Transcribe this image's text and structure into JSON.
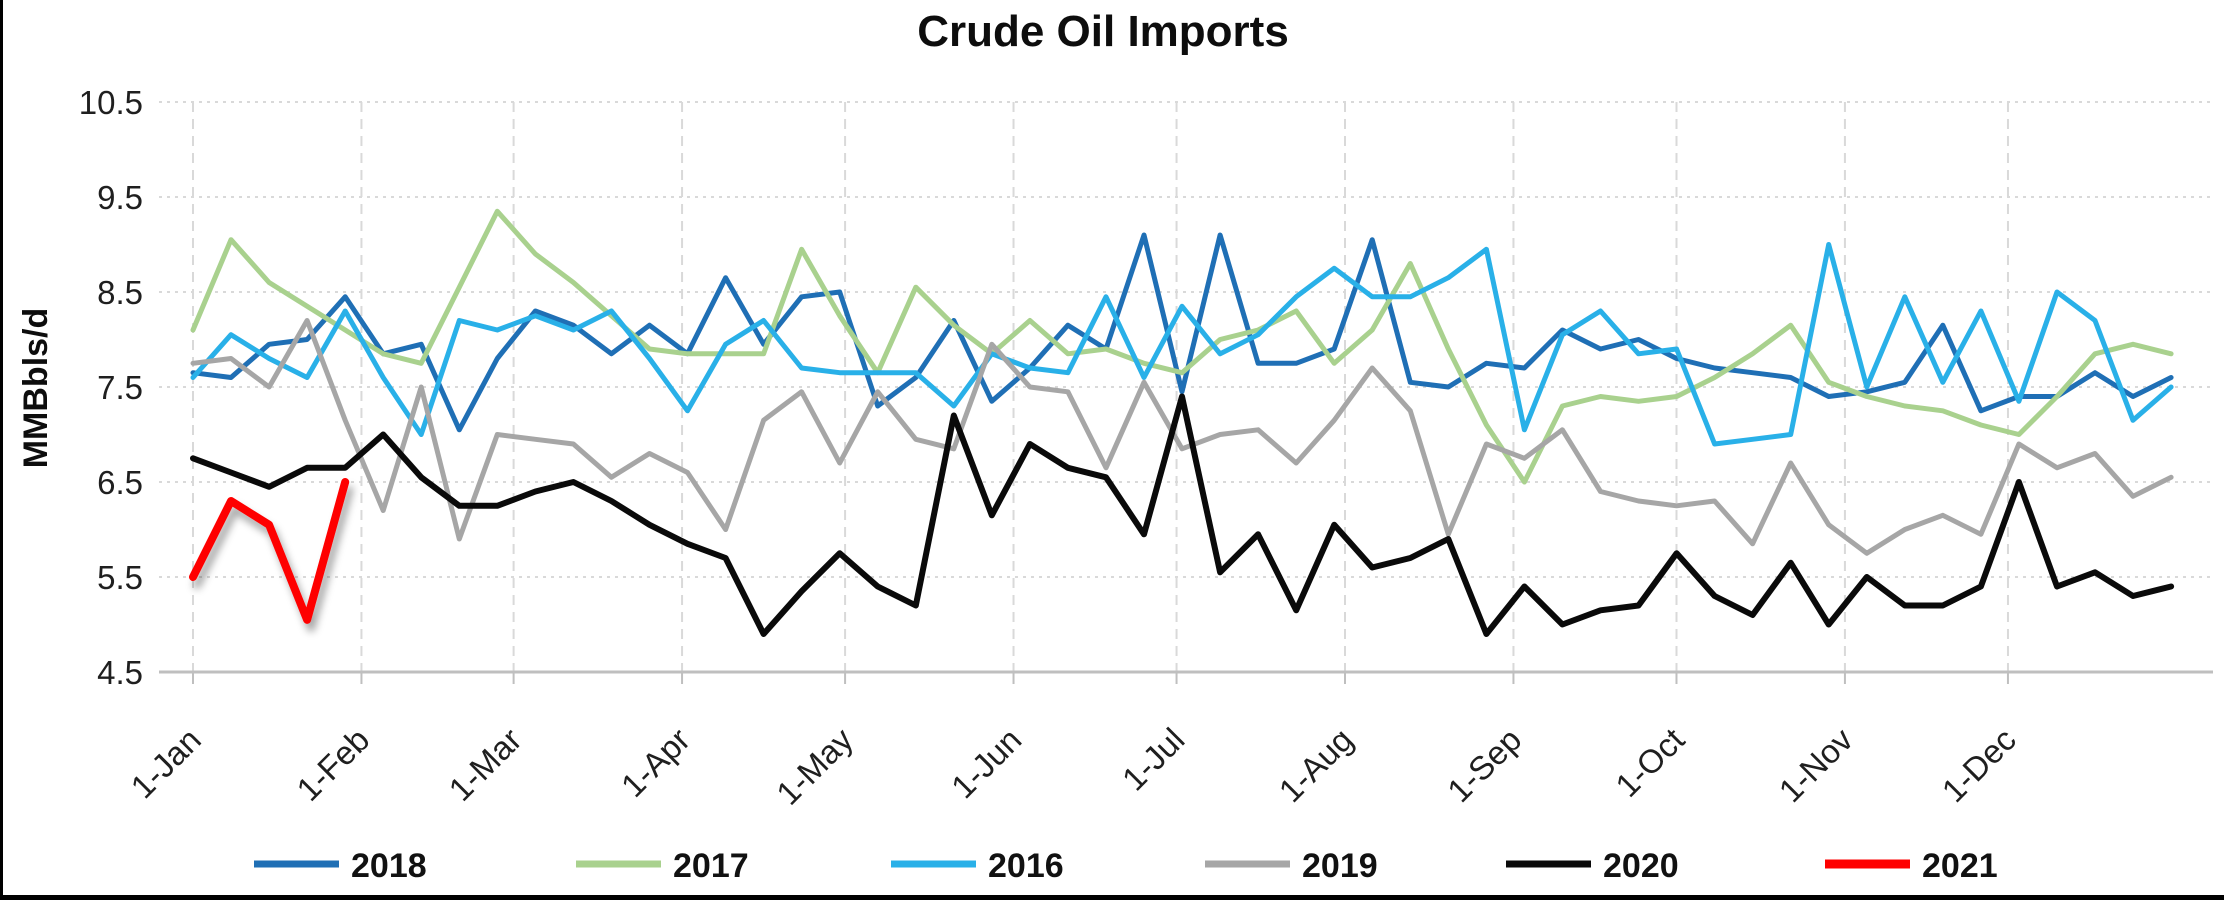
{
  "title": "Crude Oil Imports",
  "y_axis": {
    "label": "MMBbls/d",
    "ticks": [
      10.5,
      9.5,
      8.5,
      7.5,
      6.5,
      5.5,
      4.5
    ],
    "min": 4.5,
    "max": 10.5
  },
  "x_axis": {
    "tick_labels": [
      "1-Jan",
      "1-Feb",
      "1-Mar",
      "1-Apr",
      "1-May",
      "1-Jun",
      "1-Jul",
      "1-Aug",
      "1-Sep",
      "1-Oct",
      "1-Nov",
      "1-Dec"
    ],
    "tick_day_of_year": [
      0,
      31,
      59,
      90,
      120,
      151,
      181,
      212,
      243,
      273,
      304,
      334
    ]
  },
  "legend": [
    {
      "label": "2018",
      "color": "#1f6fb5"
    },
    {
      "label": "2017",
      "color": "#a9d18e"
    },
    {
      "label": "2016",
      "color": "#29b0e8"
    },
    {
      "label": "2019",
      "color": "#a6a6a6"
    },
    {
      "label": "2020",
      "color": "#0a0a0a"
    },
    {
      "label": "2021",
      "color": "#fe0000"
    }
  ],
  "chart_data": {
    "type": "line",
    "x_unit": "weekly (7-day interval starting Jan 1)",
    "n_points": 53,
    "title": "Crude Oil Imports",
    "xlabel": "",
    "ylabel": "MMBbls/d",
    "ylim": [
      4.5,
      10.5
    ],
    "grid": true,
    "legend_position": "bottom",
    "series": [
      {
        "name": "2018",
        "color": "#1f6fb5",
        "width": 5,
        "values": [
          7.65,
          7.6,
          7.95,
          8.0,
          8.45,
          7.85,
          7.95,
          7.05,
          7.8,
          8.3,
          8.15,
          7.85,
          8.15,
          7.85,
          8.65,
          7.95,
          8.45,
          8.5,
          7.3,
          7.6,
          8.2,
          7.35,
          7.7,
          8.15,
          7.9,
          9.1,
          7.45,
          9.1,
          7.75,
          7.75,
          7.9,
          9.05,
          7.55,
          7.5,
          7.75,
          7.7,
          8.1,
          7.9,
          8.0,
          7.8,
          7.7,
          7.65,
          7.6,
          7.4,
          7.45,
          7.55,
          8.15,
          7.25,
          7.4,
          7.4,
          7.65,
          7.4,
          7.6
        ]
      },
      {
        "name": "2017",
        "color": "#a9d18e",
        "width": 5,
        "values": [
          8.1,
          9.05,
          8.6,
          8.35,
          8.1,
          7.85,
          7.75,
          8.55,
          9.35,
          8.9,
          8.6,
          8.25,
          7.9,
          7.85,
          7.85,
          7.85,
          8.95,
          8.25,
          7.65,
          8.55,
          8.15,
          7.85,
          8.2,
          7.85,
          7.9,
          7.75,
          7.65,
          8.0,
          8.1,
          8.3,
          7.75,
          8.1,
          8.8,
          7.9,
          7.1,
          6.5,
          7.3,
          7.4,
          7.35,
          7.4,
          7.6,
          7.85,
          8.15,
          7.55,
          7.4,
          7.3,
          7.25,
          7.1,
          7.0,
          7.4,
          7.85,
          7.95,
          7.85
        ]
      },
      {
        "name": "2016",
        "color": "#29b0e8",
        "width": 5,
        "values": [
          7.6,
          8.05,
          7.8,
          7.6,
          8.3,
          7.6,
          7.0,
          8.2,
          8.1,
          8.25,
          8.1,
          8.3,
          7.8,
          7.25,
          7.95,
          8.2,
          7.7,
          7.65,
          7.65,
          7.65,
          7.3,
          7.85,
          7.7,
          7.65,
          8.45,
          7.6,
          8.35,
          7.85,
          8.05,
          8.45,
          8.75,
          8.45,
          8.45,
          8.65,
          8.95,
          7.05,
          8.05,
          8.3,
          7.85,
          7.9,
          6.9,
          6.95,
          7.0,
          9.0,
          7.5,
          8.45,
          7.55,
          8.3,
          7.35,
          8.5,
          8.2,
          7.15,
          7.5
        ]
      },
      {
        "name": "2019",
        "color": "#a6a6a6",
        "width": 5,
        "values": [
          7.75,
          7.8,
          7.5,
          8.2,
          7.15,
          6.2,
          7.5,
          5.9,
          7.0,
          6.95,
          6.9,
          6.55,
          6.8,
          6.6,
          6.0,
          7.15,
          7.45,
          6.7,
          7.45,
          6.95,
          6.85,
          7.95,
          7.5,
          7.45,
          6.65,
          7.55,
          6.85,
          7.0,
          7.05,
          6.7,
          7.15,
          7.7,
          7.25,
          5.95,
          6.9,
          6.75,
          7.05,
          6.4,
          6.3,
          6.25,
          6.3,
          5.85,
          6.7,
          6.05,
          5.75,
          6.0,
          6.15,
          5.95,
          6.9,
          6.65,
          6.8,
          6.35,
          6.55
        ]
      },
      {
        "name": "2020",
        "color": "#0a0a0a",
        "width": 6,
        "values": [
          6.75,
          6.6,
          6.45,
          6.65,
          6.65,
          7.0,
          6.55,
          6.25,
          6.25,
          6.4,
          6.5,
          6.3,
          6.05,
          5.85,
          5.7,
          4.9,
          5.35,
          5.75,
          5.4,
          5.2,
          7.2,
          6.15,
          6.9,
          6.65,
          6.55,
          5.95,
          7.4,
          5.55,
          5.95,
          5.15,
          6.05,
          5.6,
          5.7,
          5.9,
          4.9,
          5.4,
          5.0,
          5.15,
          5.2,
          5.75,
          5.3,
          5.1,
          5.65,
          5.0,
          5.5,
          5.2,
          5.2,
          5.4,
          6.5,
          5.4,
          5.55,
          5.3,
          5.4
        ]
      },
      {
        "name": "2021",
        "color": "#fe0000",
        "width": 8,
        "shadow": true,
        "values": [
          5.5,
          6.3,
          6.05,
          5.05,
          6.5,
          null,
          null,
          null,
          null,
          null,
          null,
          null,
          null,
          null,
          null,
          null,
          null,
          null,
          null,
          null,
          null,
          null,
          null,
          null,
          null,
          null,
          null,
          null,
          null,
          null,
          null,
          null,
          null,
          null,
          null,
          null,
          null,
          null,
          null,
          null,
          null,
          null,
          null,
          null,
          null,
          null,
          null,
          null,
          null,
          null,
          null,
          null,
          null
        ]
      }
    ]
  }
}
